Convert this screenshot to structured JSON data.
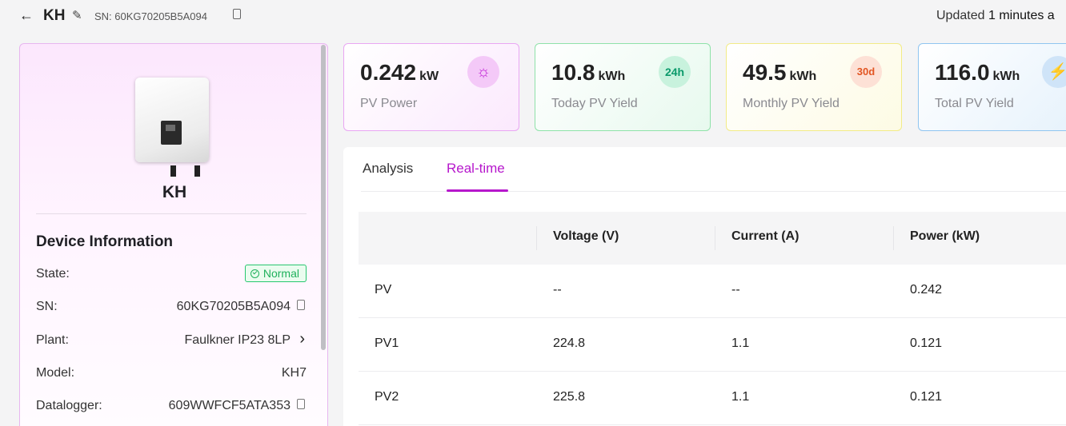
{
  "header": {
    "back_icon": "arrow-left-icon",
    "title": "KH",
    "edit_icon": "pencil-icon",
    "sn": "SN: 60KG70205B5A094",
    "copy_icon": "copy-icon",
    "updated_prefix": "Updated",
    "updated_value": "1",
    "updated_suffix": "minutes a"
  },
  "device": {
    "name": "KH",
    "info_title": "Device Information",
    "rows": [
      {
        "label": "State:",
        "value": "Normal"
      },
      {
        "label": "SN:",
        "value": "60KG70205B5A094"
      },
      {
        "label": "Plant:",
        "value": "Faulkner IP23 8LP"
      },
      {
        "label": "Model:",
        "value": "KH7"
      },
      {
        "label": "Datalogger:",
        "value": "609WWFCF5ATA353"
      }
    ]
  },
  "kpis": [
    {
      "value": "0.242",
      "unit": "kW",
      "label": "PV Power",
      "icon": "sun-icon"
    },
    {
      "value": "10.8",
      "unit": "kWh",
      "label": "Today PV Yield",
      "icon": "24h-yield-icon"
    },
    {
      "value": "49.5",
      "unit": "kWh",
      "label": "Monthly PV Yield",
      "icon": "30d-yield-icon"
    },
    {
      "value": "116.0",
      "unit": "kWh",
      "label": "Total PV Yield",
      "icon": "total-yield-icon"
    }
  ],
  "kpi_icon_glyphs": [
    "☼",
    "24h",
    "30d",
    "⚡"
  ],
  "tabs": [
    {
      "label": "Analysis",
      "active": false
    },
    {
      "label": "Real-time",
      "active": true
    }
  ],
  "table": {
    "columns": [
      "",
      "Voltage (V)",
      "Current (A)",
      "Power (kW)"
    ],
    "rows": [
      [
        "PV",
        "--",
        "--",
        "0.242"
      ],
      [
        "PV1",
        "224.8",
        "1.1",
        "0.121"
      ],
      [
        "PV2",
        "225.8",
        "1.1",
        "0.121"
      ]
    ]
  },
  "colors": {
    "accent": "#b617cc",
    "status_green": "#20b15c"
  }
}
